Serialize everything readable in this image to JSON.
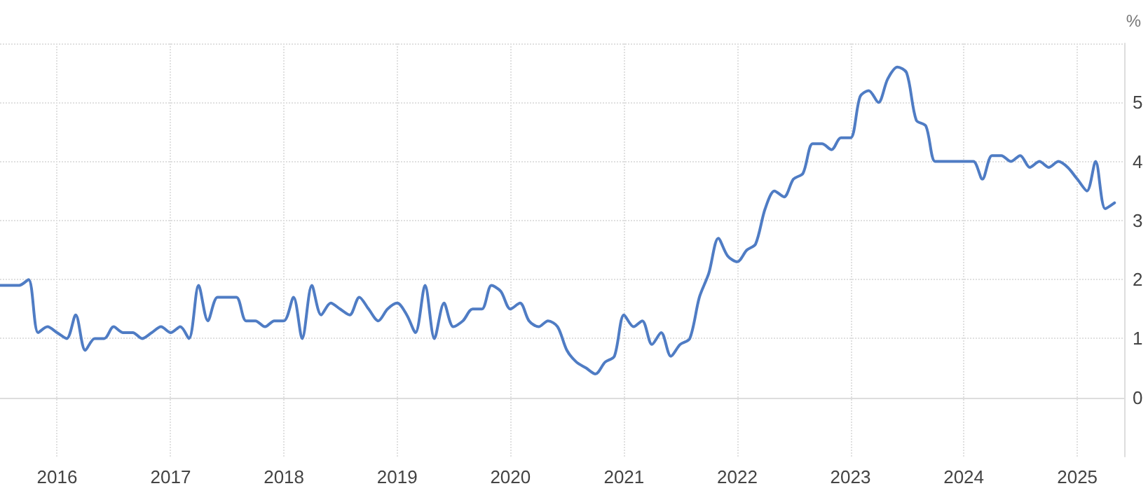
{
  "chart_data": {
    "type": "line",
    "ylabel": "%",
    "x": [
      "2015-07",
      "2015-08",
      "2015-09",
      "2015-10",
      "2015-11",
      "2015-12",
      "2016-01",
      "2016-02",
      "2016-03",
      "2016-04",
      "2016-05",
      "2016-06",
      "2016-07",
      "2016-08",
      "2016-09",
      "2016-10",
      "2016-11",
      "2016-12",
      "2017-01",
      "2017-02",
      "2017-03",
      "2017-04",
      "2017-05",
      "2017-06",
      "2017-07",
      "2017-08",
      "2017-09",
      "2017-10",
      "2017-11",
      "2017-12",
      "2018-01",
      "2018-02",
      "2018-03",
      "2018-04",
      "2018-05",
      "2018-06",
      "2018-07",
      "2018-08",
      "2018-09",
      "2018-10",
      "2018-11",
      "2018-12",
      "2019-01",
      "2019-02",
      "2019-03",
      "2019-04",
      "2019-05",
      "2019-06",
      "2019-07",
      "2019-08",
      "2019-09",
      "2019-10",
      "2019-11",
      "2019-12",
      "2020-01",
      "2020-02",
      "2020-03",
      "2020-04",
      "2020-05",
      "2020-06",
      "2020-07",
      "2020-08",
      "2020-09",
      "2020-10",
      "2020-11",
      "2020-12",
      "2021-01",
      "2021-02",
      "2021-03",
      "2021-04",
      "2021-05",
      "2021-06",
      "2021-07",
      "2021-08",
      "2021-09",
      "2021-10",
      "2021-11",
      "2021-12",
      "2022-01",
      "2022-02",
      "2022-03",
      "2022-04",
      "2022-05",
      "2022-06",
      "2022-07",
      "2022-08",
      "2022-09",
      "2022-10",
      "2022-11",
      "2022-12",
      "2023-01",
      "2023-02",
      "2023-03",
      "2023-04",
      "2023-05",
      "2023-06",
      "2023-07",
      "2023-08",
      "2023-09",
      "2023-10",
      "2023-11",
      "2023-12",
      "2024-01",
      "2024-02",
      "2024-03",
      "2024-04",
      "2024-05",
      "2024-06",
      "2024-07",
      "2024-08",
      "2024-09",
      "2024-10",
      "2024-11",
      "2024-12",
      "2025-01",
      "2025-02",
      "2025-03",
      "2025-04",
      "2025-05"
    ],
    "series": [
      {
        "color": "#4f7cc4",
        "values": [
          1.9,
          1.9,
          1.9,
          2.0,
          1.1,
          1.2,
          1.1,
          1.0,
          1.4,
          0.8,
          1.0,
          1.0,
          1.2,
          1.1,
          1.1,
          1.0,
          1.1,
          1.2,
          1.1,
          1.2,
          1.0,
          1.9,
          1.3,
          1.7,
          1.7,
          1.7,
          1.3,
          1.3,
          1.2,
          1.3,
          1.3,
          1.7,
          1.0,
          1.9,
          1.4,
          1.6,
          1.5,
          1.4,
          1.7,
          1.5,
          1.3,
          1.5,
          1.6,
          1.4,
          1.1,
          1.9,
          1.0,
          1.6,
          1.2,
          1.3,
          1.5,
          1.5,
          1.9,
          1.8,
          1.5,
          1.6,
          1.3,
          1.2,
          1.3,
          1.2,
          0.8,
          0.6,
          0.5,
          0.4,
          0.6,
          0.7,
          1.4,
          1.2,
          1.3,
          0.9,
          1.1,
          0.7,
          0.9,
          1.0,
          1.7,
          2.1,
          2.7,
          2.4,
          2.3,
          2.5,
          2.6,
          3.2,
          3.5,
          3.4,
          3.7,
          3.8,
          4.3,
          4.3,
          4.2,
          4.4,
          4.4,
          5.1,
          5.2,
          5.0,
          5.4,
          5.6,
          5.5,
          4.7,
          4.6,
          4.0,
          4.0,
          4.0,
          4.0,
          4.0,
          3.7,
          4.1,
          4.1,
          4.0,
          4.1,
          3.9,
          4.0,
          3.9,
          4.0,
          3.9,
          3.7,
          3.5,
          4.0,
          3.2,
          3.3
        ]
      }
    ],
    "xlim": [
      "2015-07",
      "2025-06"
    ],
    "xticks": [
      "2016",
      "2017",
      "2018",
      "2019",
      "2020",
      "2021",
      "2022",
      "2023",
      "2024",
      "2025"
    ],
    "ylim": [
      -1,
      6
    ],
    "yticks": [
      0,
      1,
      2,
      3,
      4,
      5,
      {
        "value": 6,
        "label": null
      }
    ],
    "grid": true,
    "marker": "none",
    "line_style": "solid"
  }
}
